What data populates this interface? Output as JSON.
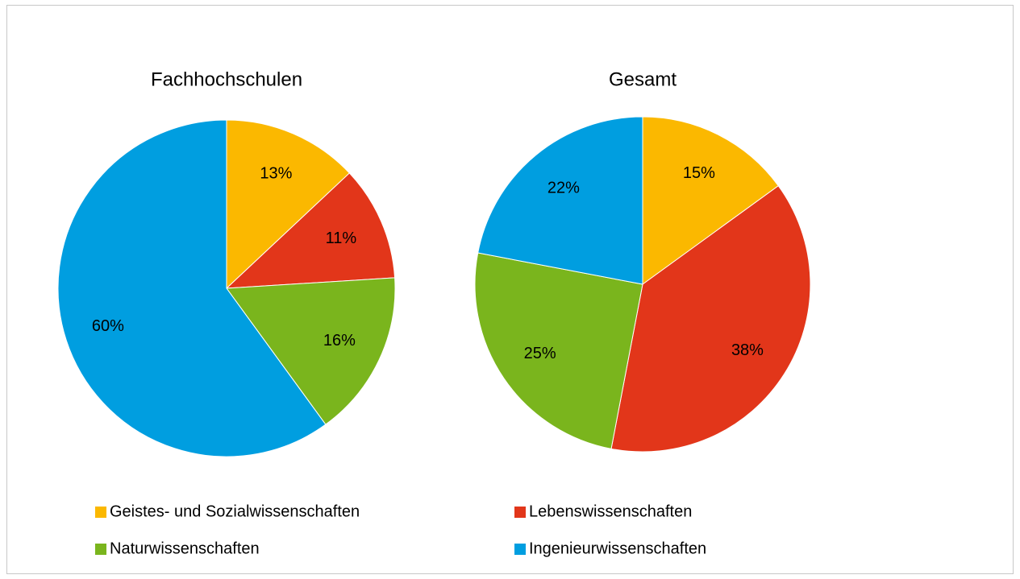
{
  "chart_data": [
    {
      "type": "pie",
      "title": "Fachhochschulen",
      "values": [
        13,
        11,
        16,
        60
      ],
      "value_labels": [
        "13%",
        "11%",
        "16%",
        "60%"
      ]
    },
    {
      "type": "pie",
      "title": "Gesamt",
      "values": [
        15,
        38,
        25,
        22
      ],
      "value_labels": [
        "15%",
        "38%",
        "25%",
        "22%"
      ]
    }
  ],
  "legend": {
    "categories": [
      "Geistes- und Sozialwissenschaften",
      "Lebenswissenschaften",
      "Naturwissenschaften",
      "Ingenieurwissenschaften"
    ],
    "colors": [
      "#fbb800",
      "#e2361a",
      "#7ab51d",
      "#009ee0"
    ]
  }
}
